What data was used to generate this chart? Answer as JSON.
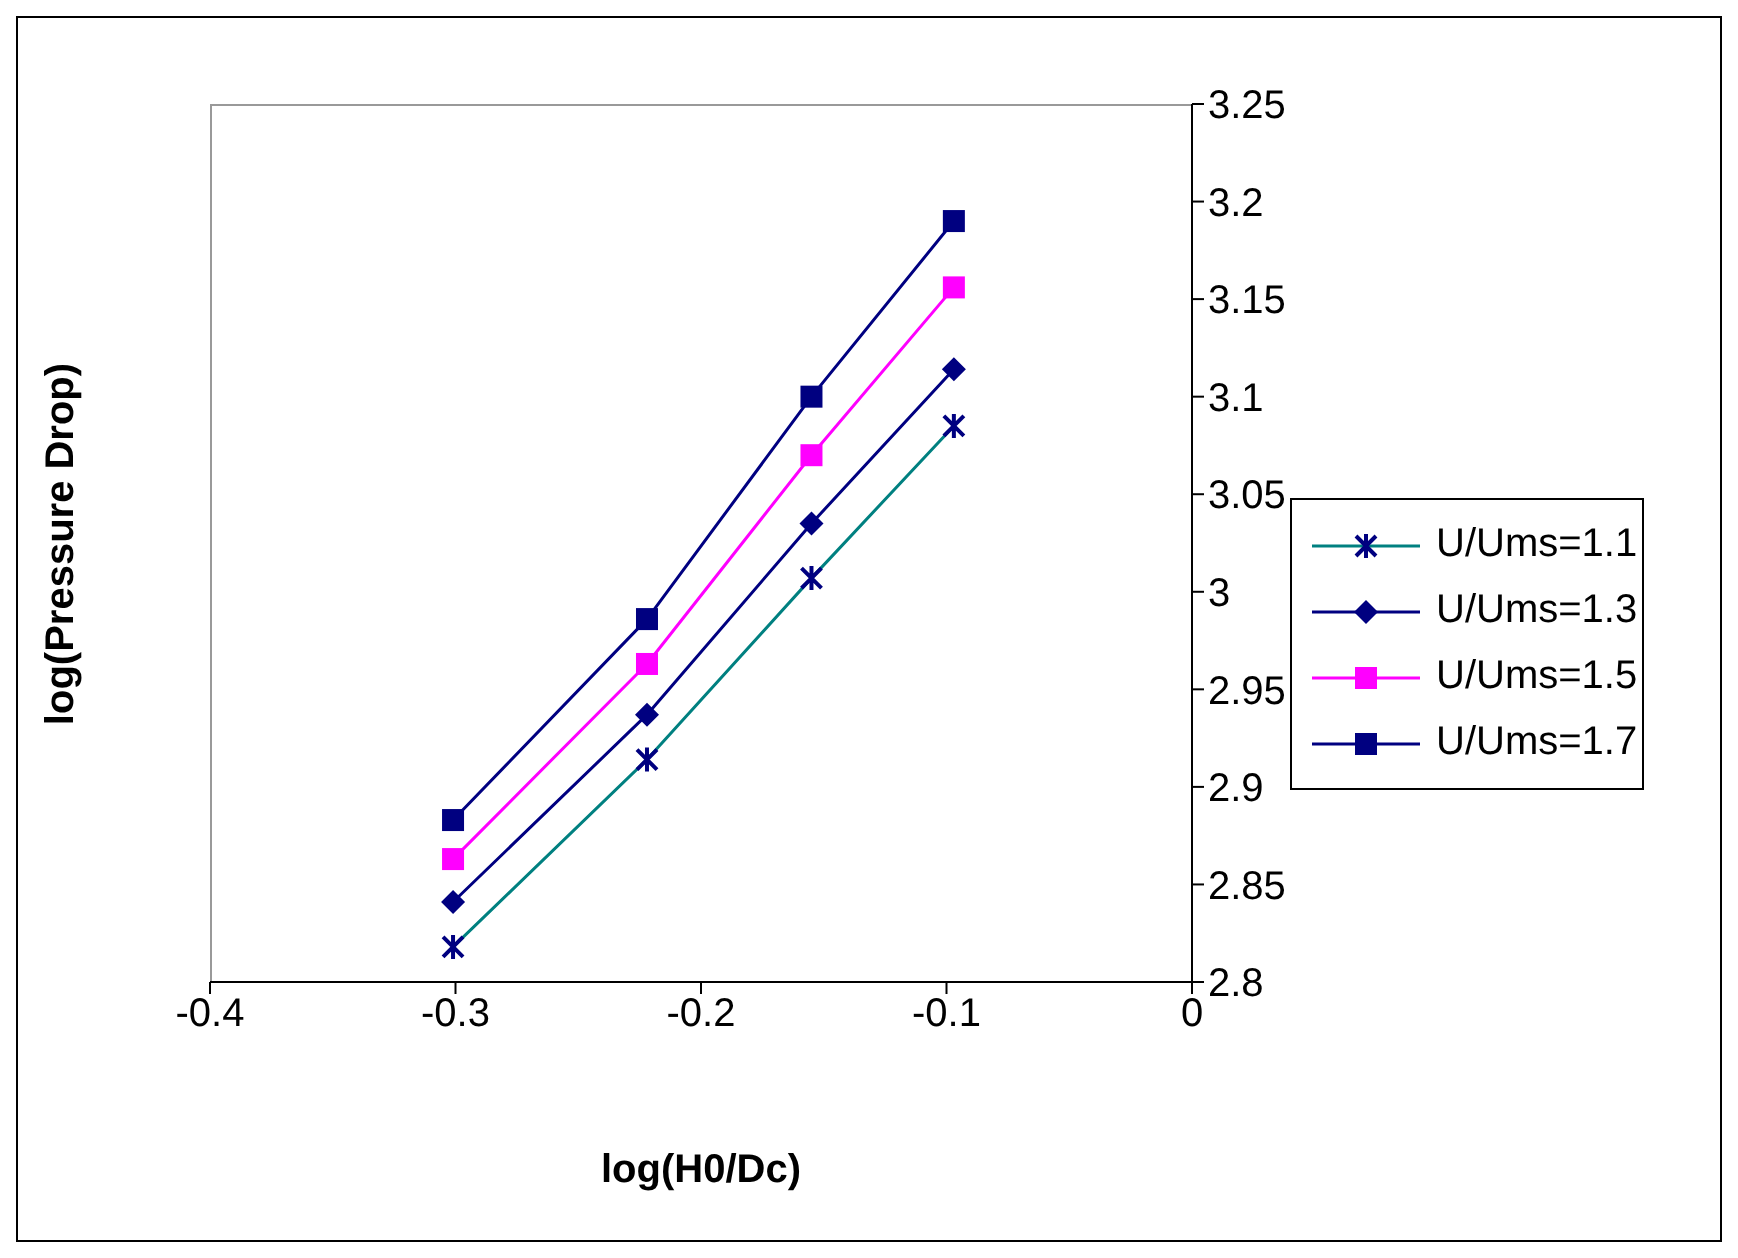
{
  "chart_data": {
    "type": "line",
    "xlabel": "log(H0/Dc)",
    "ylabel": "log(Pressure Drop)",
    "x": [
      -0.301,
      -0.222,
      -0.155,
      -0.097
    ],
    "series": [
      {
        "name": "U/Ums=1.1",
        "color": "#008080",
        "marker": "cross",
        "values": [
          2.818,
          2.914,
          3.007,
          3.085
        ]
      },
      {
        "name": "U/Ums=1.3",
        "color": "#000080",
        "marker": "diamond",
        "values": [
          2.841,
          2.937,
          3.035,
          3.114
        ]
      },
      {
        "name": "U/Ums=1.5",
        "color": "#ff00ff",
        "marker": "square",
        "values": [
          2.863,
          2.963,
          3.07,
          3.156
        ]
      },
      {
        "name": "U/Ums=1.7",
        "color": "#000080",
        "marker": "square",
        "values": [
          2.883,
          2.986,
          3.1,
          3.19
        ]
      }
    ],
    "xlim": [
      -0.4,
      0
    ],
    "xticks": [
      -0.4,
      -0.3,
      -0.2,
      -0.1,
      0
    ],
    "ylim": [
      2.8,
      3.25
    ],
    "yticks": [
      2.8,
      2.85,
      2.9,
      2.95,
      3,
      3.05,
      3.1,
      3.15,
      3.2,
      3.25
    ],
    "grid": false,
    "legend": "right"
  }
}
